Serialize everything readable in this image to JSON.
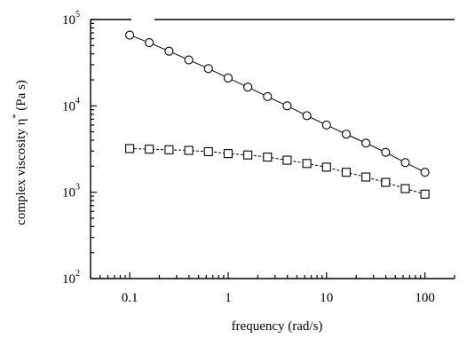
{
  "chart_data": {
    "type": "scatter",
    "xscale": "log",
    "yscale": "log",
    "xlim": [
      0.04,
      200
    ],
    "ylim": [
      100,
      100000
    ],
    "xlabel": "frequency (rad/s)",
    "ylabel": "complex viscosity η* (Pa s)",
    "ylabel_parts": {
      "main": "complex viscosity η",
      "sup": "*",
      "unit": " (Pa s)"
    },
    "x_ticks": [
      {
        "value": 0.1,
        "label": "0.1"
      },
      {
        "value": 1,
        "label": "1"
      },
      {
        "value": 10,
        "label": "10"
      },
      {
        "value": 100,
        "label": "100"
      }
    ],
    "y_ticks": [
      {
        "value": 100,
        "base": "10",
        "exp": "2"
      },
      {
        "value": 1000,
        "base": "10",
        "exp": "3"
      },
      {
        "value": 10000,
        "base": "10",
        "exp": "4"
      },
      {
        "value": 100000,
        "base": "10",
        "exp": "5"
      }
    ],
    "grid": false,
    "legend": "none",
    "series": [
      {
        "marker": "circle",
        "line": "solid",
        "x": [
          0.1,
          0.158,
          0.251,
          0.398,
          0.631,
          1,
          1.585,
          2.512,
          3.981,
          6.31,
          10,
          15.85,
          25.12,
          39.81,
          63.1,
          100
        ],
        "y": [
          66000,
          54000,
          43000,
          34000,
          27000,
          21000,
          16500,
          12800,
          10000,
          7700,
          6000,
          4700,
          3700,
          2900,
          2200,
          1700
        ]
      },
      {
        "marker": "square",
        "line": "dashed",
        "x": [
          0.1,
          0.158,
          0.251,
          0.398,
          0.631,
          1,
          1.585,
          2.512,
          3.981,
          6.31,
          10,
          15.85,
          25.12,
          39.81,
          63.1,
          100
        ],
        "y": [
          3200,
          3150,
          3100,
          3050,
          2950,
          2800,
          2700,
          2550,
          2350,
          2150,
          1950,
          1700,
          1500,
          1300,
          1100,
          950
        ]
      }
    ]
  }
}
